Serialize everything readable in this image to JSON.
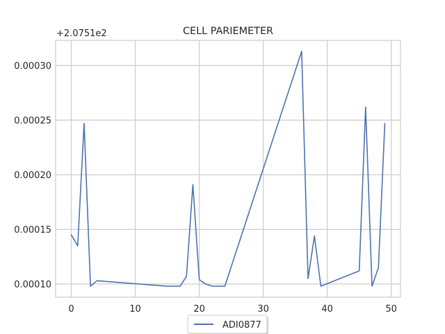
{
  "chart_data": {
    "type": "line",
    "title": "CELL PARIEMETER",
    "xlabel": "",
    "ylabel": "",
    "offset_text": "+2.0751e2",
    "xlim": [
      -2.45,
      51.45
    ],
    "ylim": [
      8.8e-05,
      0.000323
    ],
    "x_ticks": [
      0,
      10,
      20,
      30,
      40,
      50
    ],
    "x_tick_labels": [
      "0",
      "10",
      "20",
      "30",
      "40",
      "50"
    ],
    "y_ticks": [
      0.0001,
      0.00015,
      0.0002,
      0.00025,
      0.0003
    ],
    "y_tick_labels": [
      "0.00010",
      "0.00015",
      "0.00020",
      "0.00025",
      "0.00030"
    ],
    "grid": true,
    "legend_position": "lower-center",
    "series": [
      {
        "name": "ADI0877",
        "color": "#4c72b0",
        "x": [
          0,
          1,
          2,
          3,
          4,
          15,
          16,
          17,
          18,
          19,
          20,
          21,
          22,
          23,
          24,
          36,
          37,
          38,
          39,
          45,
          46,
          47,
          48,
          49
        ],
        "y": [
          0.000145,
          0.000135,
          0.000247,
          9.8e-05,
          0.000103,
          9.8e-05,
          9.8e-05,
          9.8e-05,
          0.000107,
          0.000191,
          0.000104,
          0.0001,
          9.8e-05,
          9.8e-05,
          9.8e-05,
          0.000313,
          0.000105,
          0.000144,
          9.8e-05,
          0.000112,
          0.000262,
          9.8e-05,
          0.000115,
          0.000247
        ]
      }
    ]
  }
}
